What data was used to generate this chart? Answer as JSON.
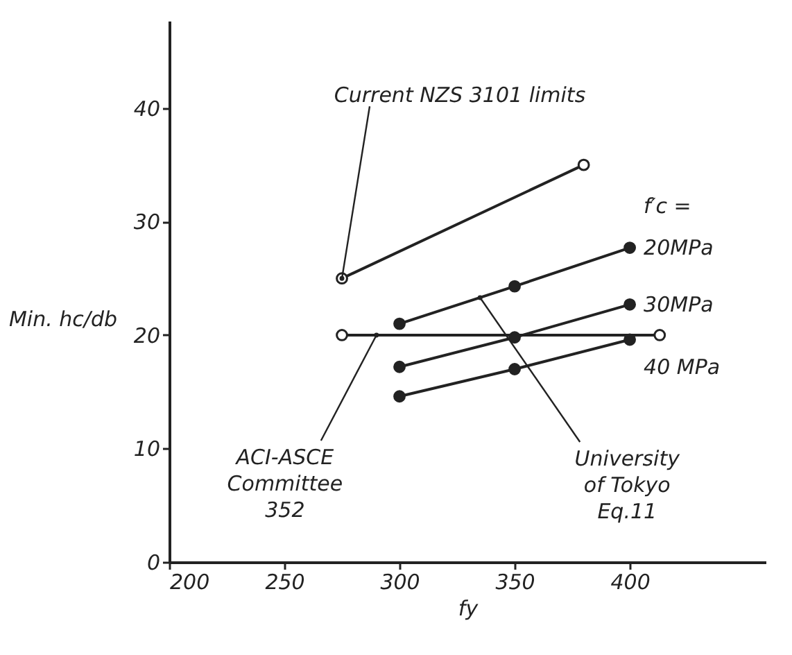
{
  "chart_data": {
    "type": "line",
    "xlabel": "fy",
    "ylabel": "Min. hc/db",
    "legend_title": "f′c =",
    "xlim": [
      200,
      459
    ],
    "ylim": [
      0,
      47.7
    ],
    "xticks": [
      200,
      250,
      300,
      350,
      400
    ],
    "yticks": [
      0,
      10,
      20,
      30,
      40
    ],
    "grid": false,
    "marker": "circle",
    "series": [
      {
        "x": [
          275,
          380
        ],
        "values": [
          25,
          35
        ],
        "color": "#222222"
      },
      {
        "x": [
          275,
          413
        ],
        "values": [
          20,
          20
        ],
        "color": "#222222"
      },
      {
        "name": "20MPa",
        "x": [
          300,
          350,
          400
        ],
        "values": [
          21,
          24.3,
          27.7
        ],
        "color": "#222222"
      },
      {
        "name": "30MPa",
        "x": [
          300,
          350,
          400
        ],
        "values": [
          17.2,
          19.8,
          22.7
        ],
        "color": "#222222"
      },
      {
        "name": "40 MPa",
        "x": [
          300,
          350,
          400
        ],
        "values": [
          14.6,
          17,
          19.6
        ],
        "color": "#222222"
      }
    ],
    "annotations": [
      {
        "text": "Current NZS 3101 limits",
        "x": 275,
        "y": 25
      },
      {
        "text": "ACI-ASCE\nCommittee\n352",
        "x": 290,
        "y": 20
      },
      {
        "text": "University\nof Tokyo\nEq.11",
        "x": 335,
        "y": 23.3
      }
    ]
  }
}
